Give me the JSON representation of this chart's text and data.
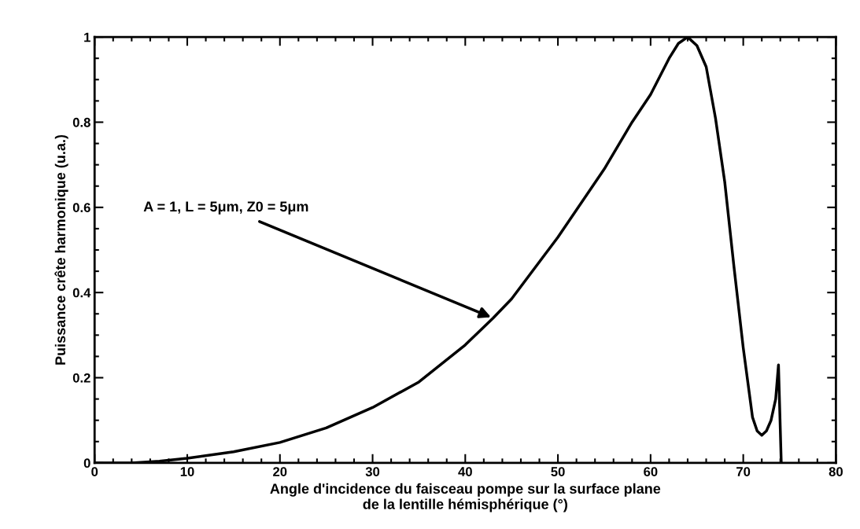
{
  "chart_data": {
    "type": "line",
    "xlabel": "Angle d'incidence du faisceau pompe sur la surface plane\nde la lentille hémisphérique (°)",
    "ylabel": "Puissance crête harmonique (u.a.)",
    "x": [
      0,
      4,
      7,
      10,
      15,
      20,
      25,
      30,
      35,
      40,
      43,
      45,
      50,
      55,
      58,
      60,
      62,
      63,
      64,
      65,
      66,
      67,
      68,
      69,
      70,
      71,
      71.5,
      72,
      72.5,
      73,
      73.5,
      73.8,
      74.1
    ],
    "values": [
      0,
      0,
      0.004,
      0.011,
      0.026,
      0.048,
      0.082,
      0.13,
      0.19,
      0.277,
      0.34,
      0.385,
      0.53,
      0.69,
      0.8,
      0.865,
      0.95,
      0.985,
      1.0,
      0.98,
      0.93,
      0.81,
      0.66,
      0.46,
      0.27,
      0.107,
      0.075,
      0.065,
      0.075,
      0.1,
      0.15,
      0.23,
      0
    ],
    "color": "#000000",
    "xlim": [
      0,
      80
    ],
    "ylim": [
      0,
      1
    ],
    "xticks": [
      0,
      10,
      20,
      30,
      40,
      50,
      60,
      70,
      80
    ],
    "yticks": [
      0,
      0.2,
      0.4,
      0.6,
      0.8,
      1
    ],
    "grid": false,
    "marker": "none",
    "line_style": "solid",
    "annotations": [
      {
        "text": "A = 1, L = 5μm, Z0 = 5μm",
        "x": 43,
        "y": 0.34
      }
    ]
  }
}
